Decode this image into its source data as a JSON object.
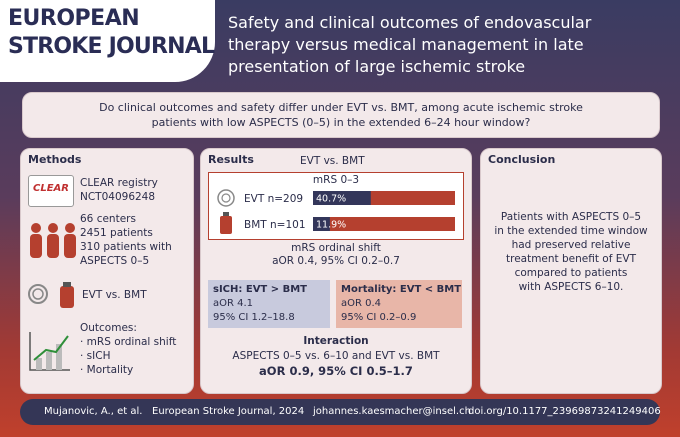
{
  "header": {
    "logo_line1": "EUROPEAN",
    "logo_line2": "STROKE JOURNAL",
    "title_lines": [
      "Safety and clinical outcomes of endovascular",
      "therapy versus medical management in late",
      "presentation of large ischemic stroke"
    ]
  },
  "question": [
    "Do clinical outcomes and safety differ under EVT vs. BMT, among acute ischemic stroke",
    "patients with low ASPECTS (0–5) in the extended 6–24 hour window?"
  ],
  "methods": {
    "heading": "Methods",
    "logo": "CLEAR",
    "registry": [
      "CLEAR registry",
      "NCT04096248"
    ],
    "cohort": [
      "66 centers",
      "2451 patients",
      "310 patients with",
      "ASPECTS 0–5"
    ],
    "comparison": "EVT vs. BMT",
    "outcomes_heading": "Outcomes:",
    "outcomes": [
      "· mRS ordinal shift",
      "· sICH",
      "· Mortality"
    ]
  },
  "results": {
    "heading": "Results",
    "comparison": "EVT vs. BMT",
    "mrs": {
      "title": "mRS 0–3",
      "groups": [
        "EVT n=209",
        "BMT n=101"
      ],
      "values": [
        40.7,
        11.9
      ],
      "value_labels": [
        "40.7%",
        "11.9%"
      ],
      "xlim": [
        0,
        100
      ]
    },
    "shift": [
      "mRS ordinal shift",
      "aOR 0.4, 95% CI 0.2–0.7"
    ],
    "sich": [
      "sICH: EVT > BMT",
      "aOR 4.1",
      "95% CI 1.2–18.8"
    ],
    "mortality": [
      "Mortality: EVT < BMT",
      "aOR 0.4",
      "95% CI 0.2–0.9"
    ],
    "interaction": [
      "Interaction",
      "ASPECTS 0–5 vs. 6–10 and EVT vs. BMT",
      "aOR 0.9, 95% CI 0.5–1.7"
    ]
  },
  "conclusion": {
    "heading": "Conclusion",
    "text": [
      "Patients with ASPECTS 0–5",
      "in the extended time window",
      "had preserved relative",
      "treatment benefit of EVT",
      "compared to patients",
      "with ASPECTS 6–10."
    ]
  },
  "footer": [
    "Mujanovic, A., et al.",
    "European Stroke Journal, 2024",
    "johannes.kaesmacher@insel.ch",
    "doi.org/10.1177_23969873241249406"
  ]
}
